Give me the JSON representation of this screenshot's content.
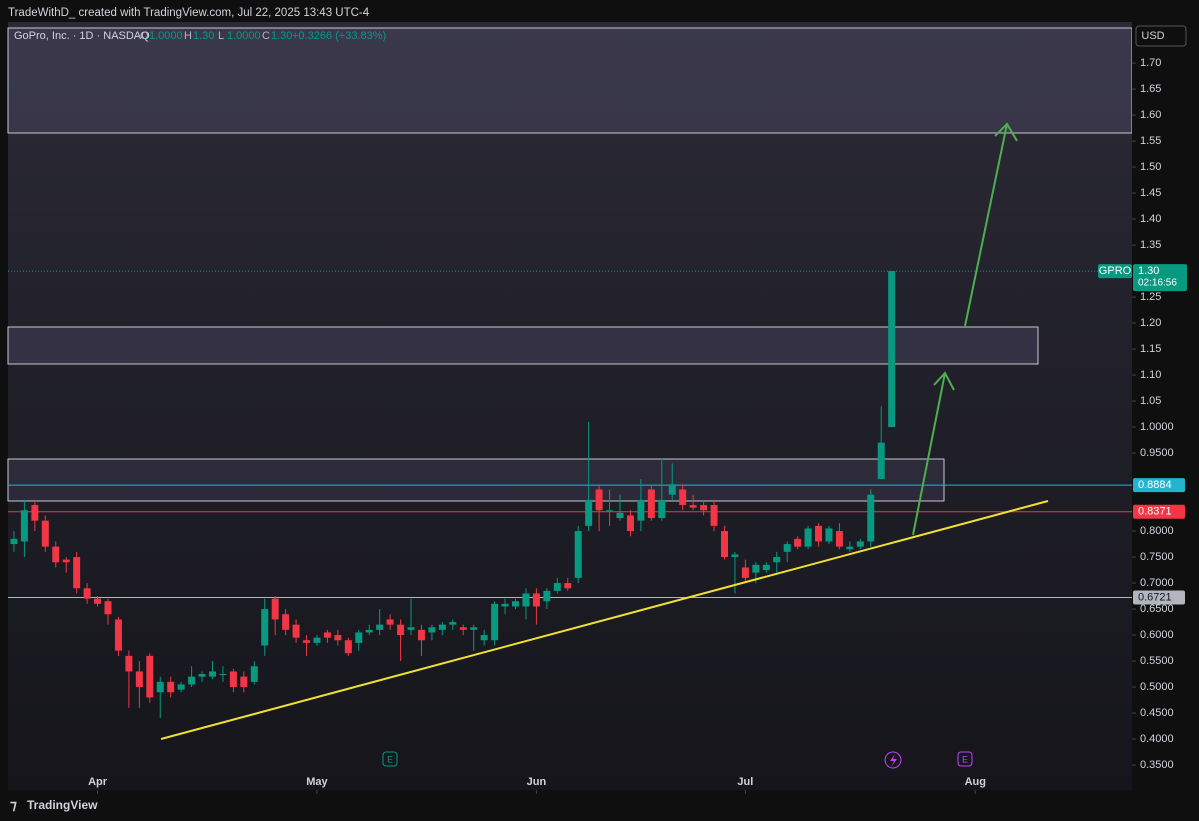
{
  "header": "TradeWithD_ created with TradingView.com, Jul 22, 2025 13:43 UTC-4",
  "footer": "TradingView",
  "chart_data": {
    "type": "candlestick",
    "title": "GoPro, Inc. · 1D · NASDAQ",
    "ohlc_legend": [
      {
        "key": "O",
        "text": "1.0000"
      },
      {
        "key": "H",
        "text": "1.30"
      },
      {
        "key": "L",
        "text": "1.0000"
      },
      {
        "key": "C",
        "text": "1.30"
      }
    ],
    "change": "+0.3266 (+33.83%)",
    "currency": "USD",
    "up_color": "#089981",
    "down_color": "#f23645",
    "open": [
      0.775,
      0.78,
      0.85,
      0.82,
      0.77,
      0.745,
      0.75,
      0.69,
      0.67,
      0.665,
      0.63,
      0.56,
      0.53,
      0.56,
      0.49,
      0.51,
      0.495,
      0.505,
      0.52,
      0.52,
      0.525,
      0.53,
      0.52,
      0.51,
      0.58,
      0.67,
      0.64,
      0.62,
      0.59,
      0.585,
      0.605,
      0.6,
      0.59,
      0.585,
      0.605,
      0.61,
      0.63,
      0.62,
      0.61,
      0.61,
      0.605,
      0.61,
      0.62,
      0.615,
      0.61,
      0.59,
      0.59,
      0.655,
      0.655,
      0.655,
      0.68,
      0.665,
      0.685,
      0.7,
      0.71,
      0.81,
      0.88,
      0.84,
      0.825,
      0.83,
      0.82,
      0.88,
      0.825,
      0.87,
      0.88,
      0.85,
      0.85,
      0.85,
      0.8,
      0.75,
      0.73,
      0.72,
      0.725,
      0.74,
      0.76,
      0.785,
      0.77,
      0.81,
      0.78,
      0.8,
      0.765,
      0.77,
      0.78,
      0.9,
      1.0
    ],
    "high": [
      0.8,
      0.86,
      0.86,
      0.83,
      0.78,
      0.75,
      0.76,
      0.7,
      0.675,
      0.67,
      0.635,
      0.57,
      0.55,
      0.565,
      0.52,
      0.52,
      0.51,
      0.54,
      0.53,
      0.55,
      0.54,
      0.535,
      0.53,
      0.55,
      0.67,
      0.675,
      0.65,
      0.63,
      0.6,
      0.6,
      0.61,
      0.61,
      0.595,
      0.61,
      0.62,
      0.65,
      0.64,
      0.63,
      0.67,
      0.62,
      0.62,
      0.625,
      0.63,
      0.62,
      0.62,
      0.61,
      0.665,
      0.67,
      0.67,
      0.69,
      0.69,
      0.69,
      0.71,
      0.71,
      0.81,
      1.01,
      0.89,
      0.88,
      0.87,
      0.84,
      0.9,
      0.89,
      0.94,
      0.93,
      0.89,
      0.87,
      0.86,
      0.86,
      0.81,
      0.76,
      0.745,
      0.74,
      0.74,
      0.76,
      0.78,
      0.79,
      0.81,
      0.815,
      0.81,
      0.815,
      0.78,
      0.785,
      0.88,
      1.04,
      1.3
    ],
    "low": [
      0.76,
      0.75,
      0.8,
      0.76,
      0.73,
      0.72,
      0.68,
      0.66,
      0.655,
      0.62,
      0.56,
      0.46,
      0.46,
      0.47,
      0.44,
      0.48,
      0.49,
      0.5,
      0.51,
      0.515,
      0.51,
      0.49,
      0.49,
      0.505,
      0.56,
      0.6,
      0.6,
      0.585,
      0.56,
      0.58,
      0.585,
      0.58,
      0.56,
      0.57,
      0.6,
      0.6,
      0.61,
      0.55,
      0.6,
      0.56,
      0.59,
      0.6,
      0.61,
      0.6,
      0.57,
      0.58,
      0.58,
      0.64,
      0.65,
      0.63,
      0.62,
      0.65,
      0.68,
      0.685,
      0.7,
      0.8,
      0.8,
      0.81,
      0.82,
      0.79,
      0.8,
      0.82,
      0.82,
      0.86,
      0.84,
      0.84,
      0.83,
      0.8,
      0.745,
      0.68,
      0.7,
      0.7,
      0.72,
      0.72,
      0.74,
      0.765,
      0.765,
      0.77,
      0.775,
      0.765,
      0.76,
      0.765,
      0.77,
      0.9,
      1.0
    ],
    "close": [
      0.785,
      0.84,
      0.82,
      0.77,
      0.74,
      0.74,
      0.69,
      0.67,
      0.66,
      0.64,
      0.57,
      0.53,
      0.5,
      0.48,
      0.51,
      0.49,
      0.505,
      0.52,
      0.525,
      0.53,
      0.525,
      0.5,
      0.5,
      0.54,
      0.65,
      0.63,
      0.61,
      0.595,
      0.585,
      0.595,
      0.595,
      0.59,
      0.565,
      0.605,
      0.61,
      0.62,
      0.62,
      0.6,
      0.615,
      0.59,
      0.615,
      0.62,
      0.625,
      0.61,
      0.615,
      0.6,
      0.66,
      0.66,
      0.665,
      0.68,
      0.655,
      0.685,
      0.7,
      0.69,
      0.8,
      0.86,
      0.84,
      0.84,
      0.835,
      0.8,
      0.86,
      0.825,
      0.86,
      0.89,
      0.85,
      0.845,
      0.84,
      0.81,
      0.75,
      0.755,
      0.71,
      0.735,
      0.735,
      0.75,
      0.775,
      0.77,
      0.805,
      0.78,
      0.805,
      0.77,
      0.77,
      0.78,
      0.87,
      0.97,
      1.3
    ],
    "xlim": [
      -0.57,
      107
    ],
    "xticks": [
      {
        "value": 8,
        "label": "Apr"
      },
      {
        "value": 29,
        "label": "May"
      },
      {
        "value": 50,
        "label": "Jun"
      },
      {
        "value": 70,
        "label": "Jul"
      },
      {
        "value": 92,
        "label": "Aug"
      }
    ],
    "ylim": [
      0.302,
      1.779
    ],
    "yticks": [
      {
        "value": 1.7,
        "label": "1.70"
      },
      {
        "value": 1.65,
        "label": "1.65"
      },
      {
        "value": 1.6,
        "label": "1.60"
      },
      {
        "value": 1.55,
        "label": "1.55"
      },
      {
        "value": 1.5,
        "label": "1.50"
      },
      {
        "value": 1.45,
        "label": "1.45"
      },
      {
        "value": 1.4,
        "label": "1.40"
      },
      {
        "value": 1.35,
        "label": "1.35"
      },
      {
        "value": 1.25,
        "label": "1.25"
      },
      {
        "value": 1.2,
        "label": "1.20"
      },
      {
        "value": 1.15,
        "label": "1.15"
      },
      {
        "value": 1.1,
        "label": "1.10"
      },
      {
        "value": 1.05,
        "label": "1.05"
      },
      {
        "value": 1.0,
        "label": "1.0000"
      },
      {
        "value": 0.95,
        "label": "0.9500"
      },
      {
        "value": 0.8,
        "label": "0.8000"
      },
      {
        "value": 0.75,
        "label": "0.7500"
      },
      {
        "value": 0.7,
        "label": "0.7000"
      },
      {
        "value": 0.65,
        "label": "0.6500"
      },
      {
        "value": 0.6,
        "label": "0.6000"
      },
      {
        "value": 0.55,
        "label": "0.5500"
      },
      {
        "value": 0.5,
        "label": "0.5000"
      },
      {
        "value": 0.45,
        "label": "0.4500"
      },
      {
        "value": 0.4,
        "label": "0.4000"
      },
      {
        "value": 0.35,
        "label": "0.3500"
      }
    ],
    "price_lines": [
      {
        "value": 0.8884,
        "label": "0.8884",
        "color": "#22b5d1"
      },
      {
        "value": 0.8371,
        "label": "0.8371",
        "color": "#f23645"
      },
      {
        "value": 0.6721,
        "label": "0.6721",
        "color": "#b2b5be"
      }
    ],
    "last_price": {
      "symbol": "GPRO",
      "value": 1.3,
      "label": "1.30",
      "countdown": "02:16:56",
      "color": "#089981"
    },
    "events": [
      "E",
      "E"
    ]
  }
}
